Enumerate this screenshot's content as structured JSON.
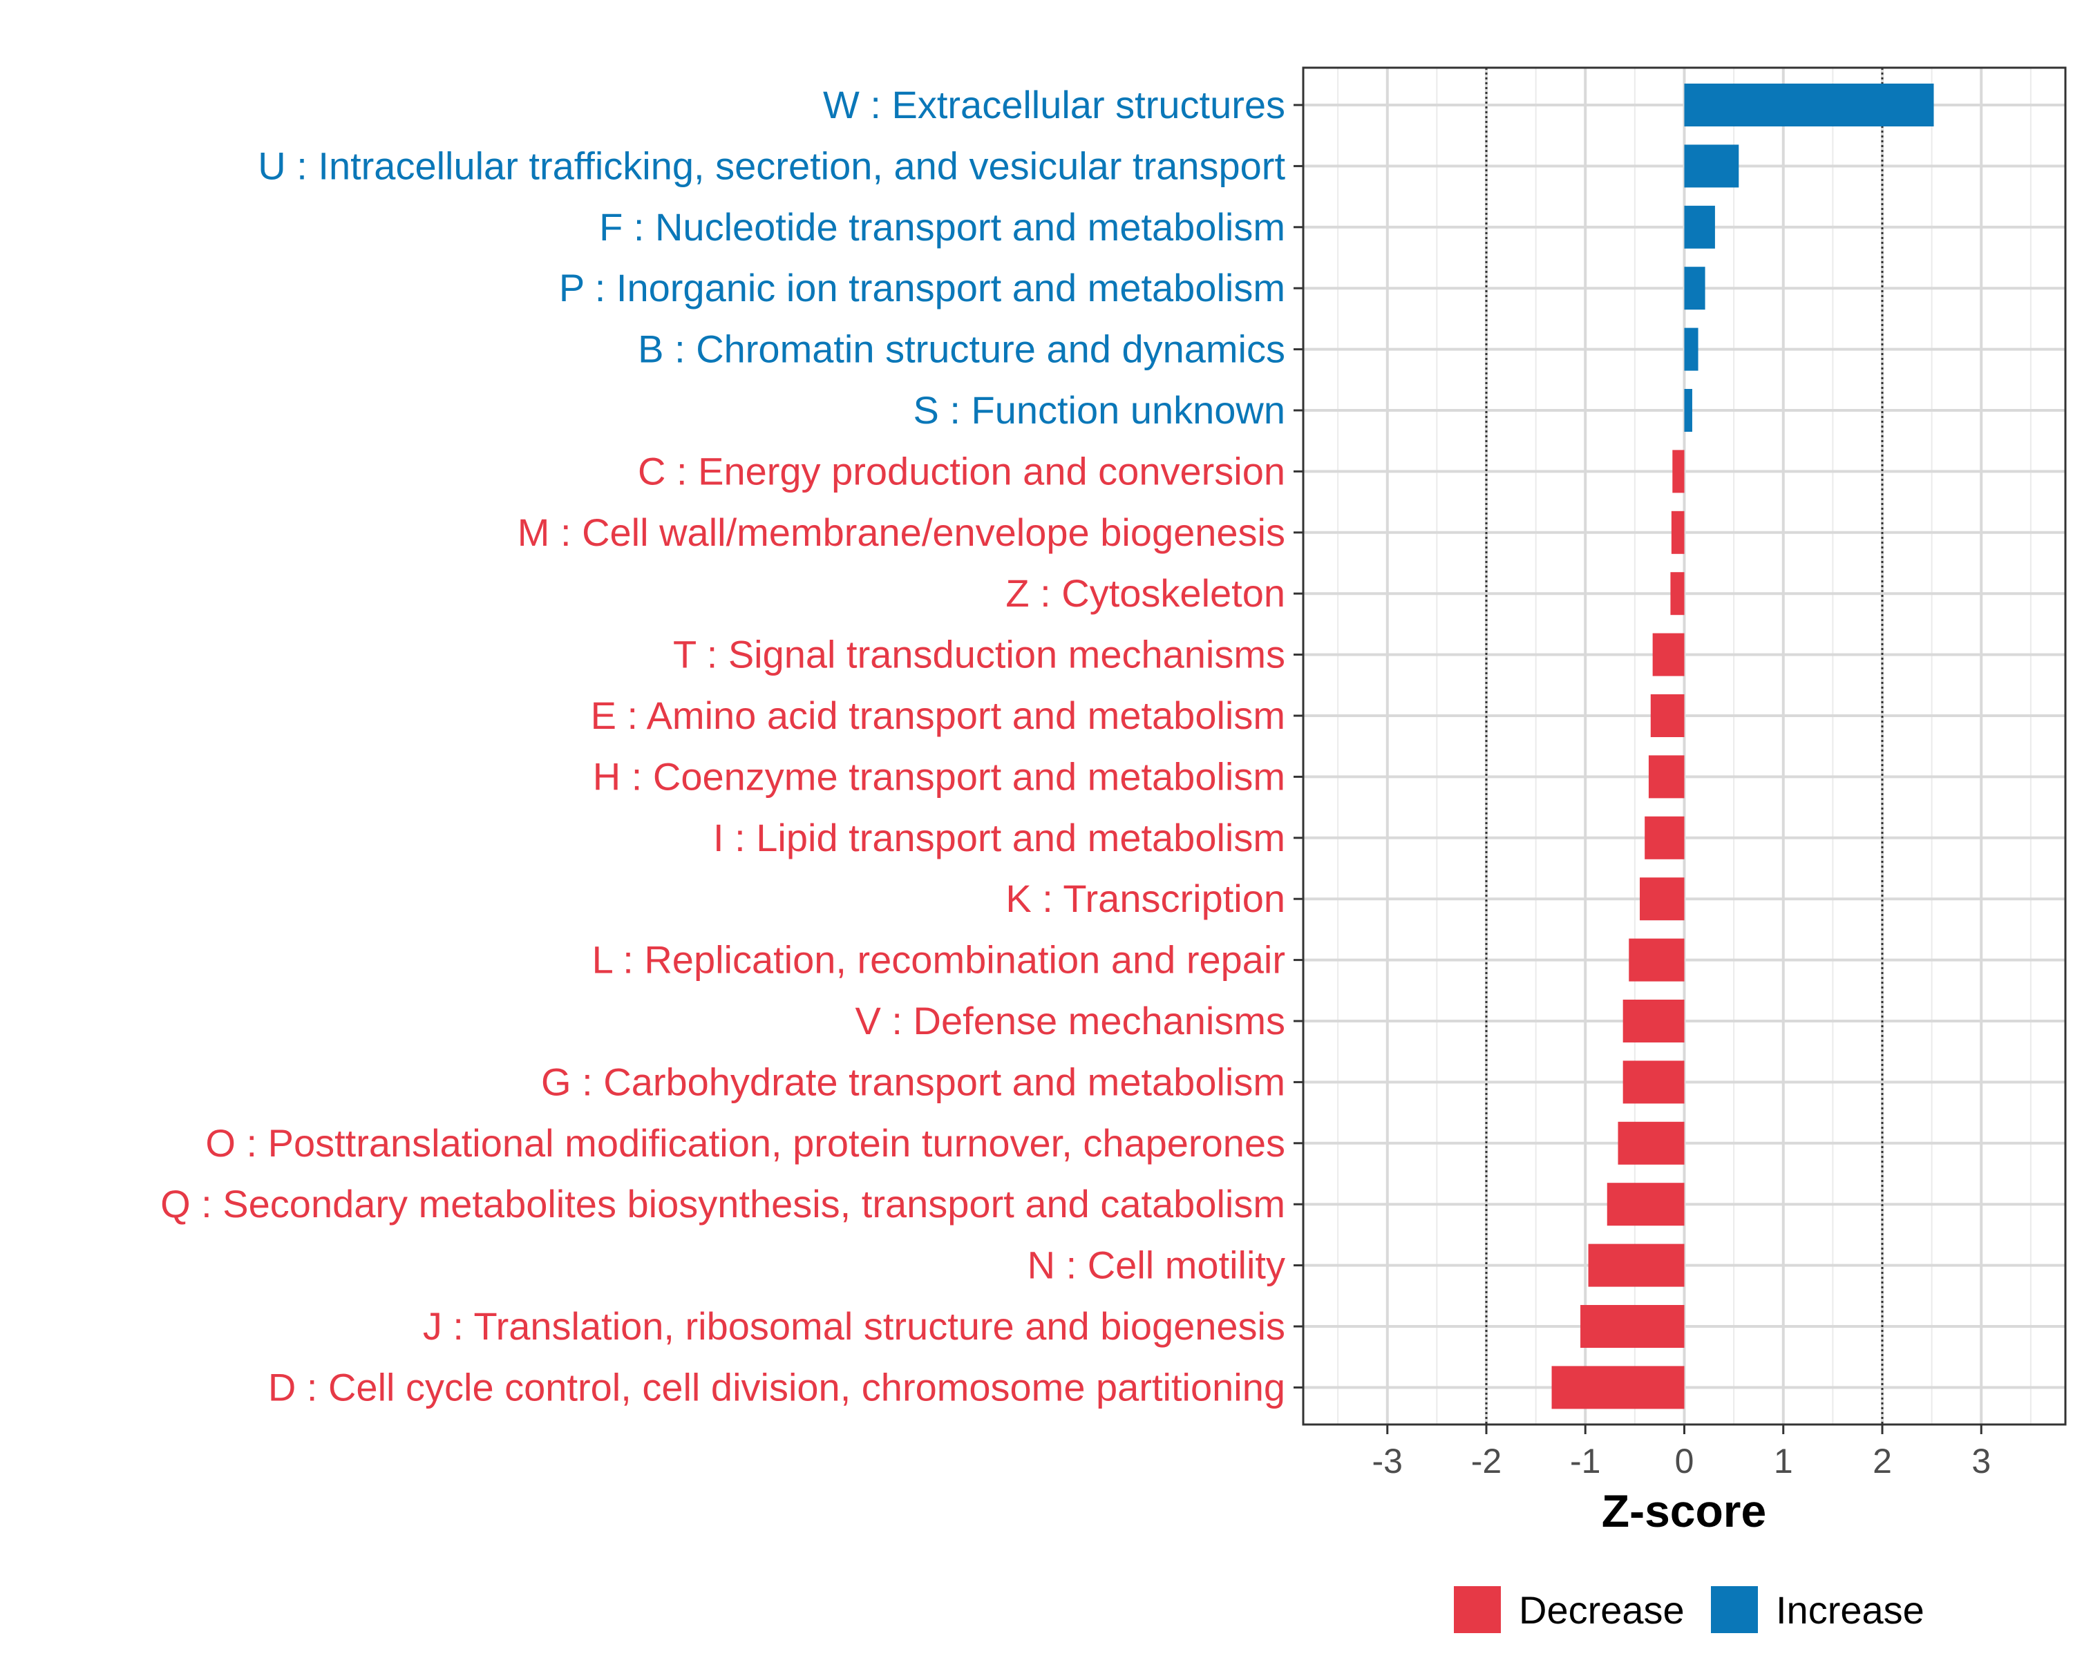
{
  "chart_data": {
    "type": "bar",
    "orientation": "horizontal",
    "xlabel": "Z-score",
    "xlim": [
      -3.85,
      3.85
    ],
    "xticks": [
      -3,
      -2,
      -1,
      0,
      1,
      2,
      3
    ],
    "xtick_labels": [
      "-3",
      "-2",
      "-1",
      "0",
      "1",
      "2",
      "3"
    ],
    "reference_lines": [
      -2,
      2
    ],
    "grid": true,
    "colors": {
      "Decrease": "#e63946",
      "Increase": "#0a77b8"
    },
    "legend": {
      "placement": "bottom",
      "entries": [
        "Decrease",
        "Increase"
      ]
    },
    "categories": [
      "W : Extracellular structures",
      "U : Intracellular trafficking, secretion, and vesicular transport",
      "F : Nucleotide transport and metabolism",
      "P : Inorganic ion transport and metabolism",
      "B : Chromatin structure and dynamics",
      "S : Function unknown",
      "C : Energy production and conversion",
      "M : Cell wall/membrane/envelope biogenesis",
      "Z : Cytoskeleton",
      "T : Signal transduction mechanisms",
      "E : Amino acid transport and metabolism",
      "H : Coenzyme transport and metabolism",
      "I : Lipid transport and metabolism",
      "K : Transcription",
      "L : Replication, recombination and repair",
      "V : Defense mechanisms",
      "G : Carbohydrate transport and metabolism",
      "O : Posttranslational modification, protein turnover, chaperones",
      "Q : Secondary metabolites biosynthesis, transport and catabolism",
      "N : Cell motility",
      "J : Translation, ribosomal structure and biogenesis",
      "D : Cell cycle control, cell division, chromosome partitioning"
    ],
    "values": [
      2.52,
      0.55,
      0.31,
      0.21,
      0.14,
      0.08,
      -0.12,
      -0.13,
      -0.14,
      -0.32,
      -0.34,
      -0.36,
      -0.4,
      -0.45,
      -0.56,
      -0.62,
      -0.62,
      -0.67,
      -0.78,
      -0.97,
      -1.05,
      -1.34
    ],
    "groups": [
      "Increase",
      "Increase",
      "Increase",
      "Increase",
      "Increase",
      "Increase",
      "Decrease",
      "Decrease",
      "Decrease",
      "Decrease",
      "Decrease",
      "Decrease",
      "Decrease",
      "Decrease",
      "Decrease",
      "Decrease",
      "Decrease",
      "Decrease",
      "Decrease",
      "Decrease",
      "Decrease",
      "Decrease"
    ]
  }
}
